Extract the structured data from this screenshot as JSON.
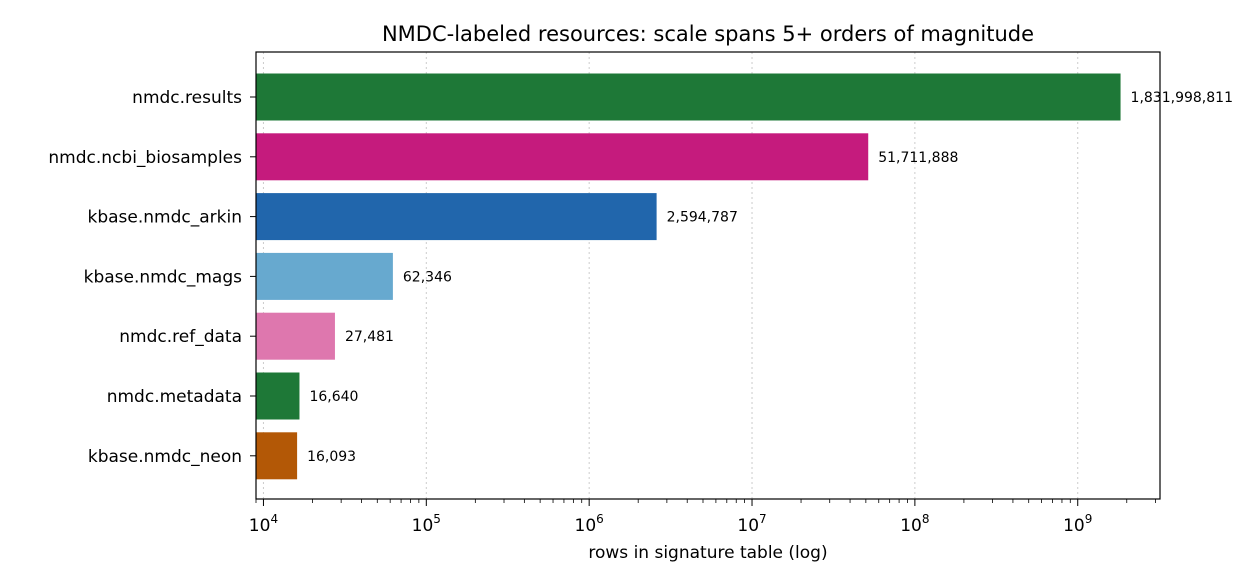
{
  "chart_data": {
    "type": "bar",
    "orientation": "horizontal",
    "title": "NMDC-labeled resources: scale spans 5+ orders of magnitude",
    "xlabel": "rows in signature table (log)",
    "ylabel": "",
    "x_scale": "log",
    "xlim": [
      9000,
      3200000000
    ],
    "x_ticks": [
      10000,
      100000,
      1000000,
      10000000,
      100000000,
      1000000000
    ],
    "x_tick_labels": [
      {
        "base": "10",
        "exp": "4"
      },
      {
        "base": "10",
        "exp": "5"
      },
      {
        "base": "10",
        "exp": "6"
      },
      {
        "base": "10",
        "exp": "7"
      },
      {
        "base": "10",
        "exp": "8"
      },
      {
        "base": "10",
        "exp": "9"
      }
    ],
    "grid": "x-major dotted",
    "legend": "none",
    "categories": [
      "nmdc.results",
      "nmdc.ncbi_biosamples",
      "kbase.nmdc_arkin",
      "kbase.nmdc_mags",
      "nmdc.ref_data",
      "nmdc.metadata",
      "kbase.nmdc_neon"
    ],
    "values": [
      1831998811,
      51711888,
      2594787,
      62346,
      27481,
      16640,
      16093
    ],
    "value_labels": [
      "1,831,998,811",
      "51,711,888",
      "2,594,787",
      "62,346",
      "27,481",
      "16,640",
      "16,093"
    ],
    "colors": [
      "#1e7837",
      "#c51b7d",
      "#2166ac",
      "#67a9cf",
      "#de77ae",
      "#1e7837",
      "#b35806"
    ]
  }
}
